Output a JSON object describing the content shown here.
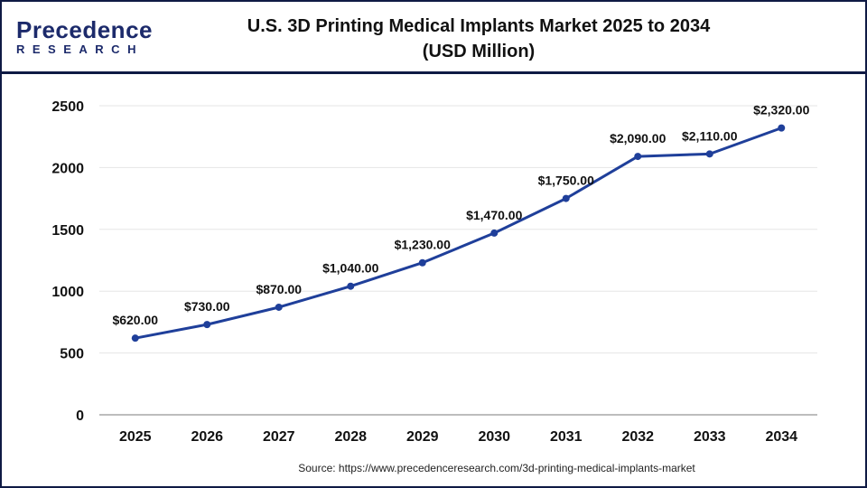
{
  "logo": {
    "line1": "Precedence",
    "line2": "RESEARCH"
  },
  "title_line1": "U.S. 3D Printing Medical Implants Market 2025 to 2034",
  "title_line2": "(USD Million)",
  "source": "Source: https://www.precedenceresearch.com/3d-printing-medical-implants-market",
  "chart_data": {
    "type": "line",
    "title": "U.S. 3D Printing Medical Implants Market 2025 to 2034 (USD Million)",
    "categories": [
      "2025",
      "2026",
      "2027",
      "2028",
      "2029",
      "2030",
      "2031",
      "2032",
      "2033",
      "2034"
    ],
    "values": [
      620,
      730,
      870,
      1040,
      1230,
      1470,
      1750,
      2090,
      2110,
      2320
    ],
    "data_labels": [
      "$620.00",
      "$730.00",
      "$870.00",
      "$1,040.00",
      "$1,230.00",
      "$1,470.00",
      "$1,750.00",
      "$2,090.00",
      "$2,110.00",
      "$2,320.00"
    ],
    "yticks": [
      0,
      500,
      1000,
      1500,
      2000,
      2500
    ],
    "ylim": [
      0,
      2500
    ],
    "grid": true,
    "line_color": "#1f3f9a"
  }
}
